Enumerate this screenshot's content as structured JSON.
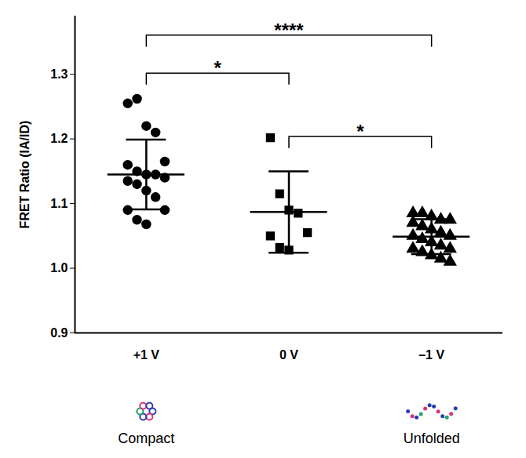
{
  "chart_data": {
    "type": "scatter",
    "ylabel": "FRET Ratio (IA/ID)",
    "categories": [
      "+1 V",
      "0 V",
      "–1 V"
    ],
    "color": "#000000",
    "ylim": [
      0.9,
      1.39
    ],
    "yticks": [
      0.9,
      {
        "value": 1,
        "label": "1.0"
      },
      1.1,
      1.2,
      1.3
    ],
    "groups": [
      {
        "category": "+1 V",
        "marker": "circle",
        "mean": 1.145,
        "sd": 0.054,
        "values": [
          1.255,
          1.262,
          1.22,
          1.21,
          1.165,
          1.16,
          1.15,
          1.145,
          1.145,
          1.14,
          1.135,
          1.13,
          1.12,
          1.11,
          1.09,
          1.09,
          1.075,
          1.068
        ]
      },
      {
        "category": "0 V",
        "marker": "square",
        "mean": 1.087,
        "sd": 0.063,
        "values": [
          1.202,
          1.115,
          1.09,
          1.085,
          1.055,
          1.05,
          1.032,
          1.028
        ]
      },
      {
        "category": "–1 V",
        "marker": "triangle",
        "mean": 1.049,
        "sd": 0.027,
        "values": [
          1.085,
          1.085,
          1.08,
          1.075,
          1.075,
          1.07,
          1.065,
          1.06,
          1.055,
          1.05,
          1.05,
          1.045,
          1.04,
          1.035,
          1.03,
          1.03,
          1.025,
          1.02,
          1.015,
          1.01
        ]
      }
    ],
    "annotations": [
      {
        "from": "+1 V",
        "to": "–1 V",
        "label": "****"
      },
      {
        "from": "+1 V",
        "to": "0 V",
        "label": "*"
      },
      {
        "from": "0 V",
        "to": "–1 V",
        "label": "*"
      }
    ],
    "category_notes": [
      {
        "category": "+1 V",
        "label": "Compact"
      },
      {
        "category": "–1 V",
        "label": "Unfolded"
      }
    ]
  }
}
